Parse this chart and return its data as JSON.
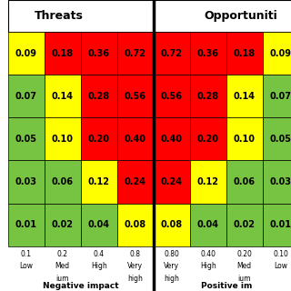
{
  "title_left": "Threats",
  "title_right": "Opportuniti",
  "rows": 5,
  "ncols_l": 4,
  "ncols_r": 4,
  "cell_values_left": [
    [
      "0.09",
      "0.18",
      "0.36",
      "0.72"
    ],
    [
      "0.07",
      "0.14",
      "0.28",
      "0.56"
    ],
    [
      "0.05",
      "0.10",
      "0.20",
      "0.40"
    ],
    [
      "0.03",
      "0.06",
      "0.12",
      "0.24"
    ],
    [
      "0.01",
      "0.02",
      "0.04",
      "0.08"
    ]
  ],
  "cell_values_right": [
    [
      "0.72",
      "0.36",
      "0.18",
      "0.09"
    ],
    [
      "0.56",
      "0.28",
      "0.14",
      "0.07"
    ],
    [
      "0.40",
      "0.20",
      "0.10",
      "0.05"
    ],
    [
      "0.24",
      "0.12",
      "0.06",
      "0.03"
    ],
    [
      "0.08",
      "0.04",
      "0.02",
      "0.01"
    ]
  ],
  "cell_colors_left": [
    [
      "#ffff00",
      "#ff0000",
      "#ff0000",
      "#ff0000"
    ],
    [
      "#76c442",
      "#ffff00",
      "#ff0000",
      "#ff0000"
    ],
    [
      "#76c442",
      "#ffff00",
      "#ff0000",
      "#ff0000"
    ],
    [
      "#76c442",
      "#76c442",
      "#ffff00",
      "#ff0000"
    ],
    [
      "#76c442",
      "#76c442",
      "#76c442",
      "#ffff00"
    ]
  ],
  "cell_colors_right": [
    [
      "#ff0000",
      "#ff0000",
      "#ff0000",
      "#ffff00"
    ],
    [
      "#ff0000",
      "#ff0000",
      "#ffff00",
      "#76c442"
    ],
    [
      "#ff0000",
      "#ff0000",
      "#ffff00",
      "#76c442"
    ],
    [
      "#ff0000",
      "#ffff00",
      "#76c442",
      "#76c442"
    ],
    [
      "#ffff00",
      "#76c442",
      "#76c442",
      "#76c442"
    ]
  ],
  "xlabels_left_line1": [
    "0.1",
    "0.2",
    "0.4",
    "0.8"
  ],
  "xlabels_left_line2": [
    "Low",
    "Med",
    "High",
    "Very"
  ],
  "xlabels_left_line3": [
    "",
    "ium",
    "",
    "high"
  ],
  "xlabels_right_line1": [
    "0.80",
    "0.40",
    "0.20",
    "0.10"
  ],
  "xlabels_right_line2": [
    "Very",
    "High",
    "Med",
    "Low"
  ],
  "xlabels_right_line3": [
    "high",
    "",
    "ium",
    ""
  ],
  "xlabel_left": "Negative impact",
  "xlabel_right": "Positive im",
  "fig_width": 3.2,
  "fig_height": 3.2,
  "dpi": 100,
  "cell_fontsize": 7,
  "header_fontsize": 9,
  "xlabel_fontsize": 5.5,
  "impact_fontsize": 6.5
}
